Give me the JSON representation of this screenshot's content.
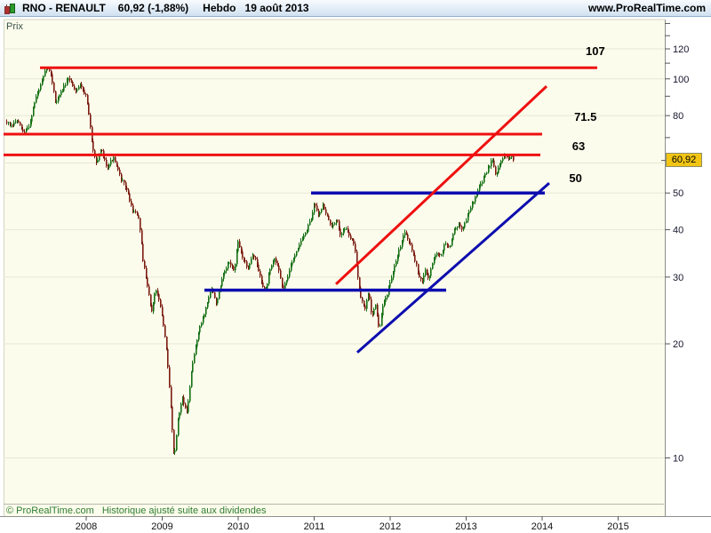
{
  "title_bar": {
    "symbol": "RNO - RENAULT",
    "price": "60,92 (-1,88%)",
    "timeframe": "Hebdo",
    "date": "19 août 2013",
    "site": "www.ProRealTime.com"
  },
  "chart": {
    "ylabel": "Prix",
    "copyright": "© ProRealTime.com",
    "footnote": "Historique ajusté suite aux dividendes",
    "last_price_badge": "60,92",
    "colors": {
      "plot_bg": "#fcfcec",
      "grid": "#e7e7d5",
      "axis": "#8f8f8f",
      "tick": "#555555",
      "candle_up": "#157015",
      "candle_down": "#7b1c10",
      "line_red": "#ee1010",
      "line_blue": "#0d0daf",
      "badge_bg": "#f2c513",
      "copyright_green": "#2f7d32",
      "label_text": "#000000",
      "axis_text": "#15152c"
    }
  },
  "chart_data": {
    "type": "candlestick",
    "title": "RNO - RENAULT weekly (Hebdo) price chart, log scale",
    "last_close": 60.92,
    "change_pct": -1.88,
    "as_of": "19 août 2013",
    "x_axis_years": [
      2008,
      2009,
      2010,
      2011,
      2012,
      2013,
      2014,
      2015
    ],
    "y_ticks_labeled": [
      120,
      100,
      80,
      50,
      40,
      30,
      20,
      10
    ],
    "y_ticks_minor": [
      140,
      130,
      110,
      90,
      70
    ],
    "y_gridlines": [
      120,
      100,
      80,
      60,
      50,
      40,
      30,
      20,
      10
    ],
    "y_scale": "log",
    "x_range_years": [
      2006.9,
      2015.6
    ],
    "price_path": [
      [
        2006.95,
        77
      ],
      [
        2007.01,
        74.5
      ],
      [
        2007.08,
        78
      ],
      [
        2007.17,
        71.8
      ],
      [
        2007.25,
        76
      ],
      [
        2007.33,
        89
      ],
      [
        2007.42,
        99
      ],
      [
        2007.47,
        107.5
      ],
      [
        2007.53,
        103
      ],
      [
        2007.59,
        86
      ],
      [
        2007.66,
        92
      ],
      [
        2007.77,
        100.5
      ],
      [
        2007.85,
        93
      ],
      [
        2007.92,
        97
      ],
      [
        2008.0,
        89
      ],
      [
        2008.07,
        67
      ],
      [
        2008.13,
        60
      ],
      [
        2008.19,
        65
      ],
      [
        2008.27,
        58.5
      ],
      [
        2008.35,
        62
      ],
      [
        2008.44,
        55
      ],
      [
        2008.53,
        51
      ],
      [
        2008.6,
        45
      ],
      [
        2008.68,
        43.5
      ],
      [
        2008.74,
        33
      ],
      [
        2008.8,
        28.5
      ],
      [
        2008.85,
        24
      ],
      [
        2008.91,
        28
      ],
      [
        2008.97,
        25
      ],
      [
        2009.03,
        21
      ],
      [
        2009.09,
        15
      ],
      [
        2009.15,
        9.8
      ],
      [
        2009.2,
        12.5
      ],
      [
        2009.26,
        14.5
      ],
      [
        2009.32,
        13
      ],
      [
        2009.38,
        17
      ],
      [
        2009.46,
        21
      ],
      [
        2009.56,
        24.5
      ],
      [
        2009.64,
        28
      ],
      [
        2009.71,
        25.5
      ],
      [
        2009.79,
        30
      ],
      [
        2009.88,
        33
      ],
      [
        2009.94,
        31
      ],
      [
        2009.99,
        37
      ],
      [
        2010.05,
        34
      ],
      [
        2010.12,
        31.5
      ],
      [
        2010.18,
        34.5
      ],
      [
        2010.23,
        33
      ],
      [
        2010.29,
        29.5
      ],
      [
        2010.35,
        27.4
      ],
      [
        2010.41,
        31
      ],
      [
        2010.47,
        33.5
      ],
      [
        2010.53,
        31.5
      ],
      [
        2010.58,
        27.6
      ],
      [
        2010.64,
        30
      ],
      [
        2010.73,
        34
      ],
      [
        2010.81,
        37
      ],
      [
        2010.89,
        39.5
      ],
      [
        2010.96,
        43
      ],
      [
        2011.0,
        47.5
      ],
      [
        2011.05,
        44
      ],
      [
        2011.11,
        46.5
      ],
      [
        2011.17,
        43
      ],
      [
        2011.23,
        40.5
      ],
      [
        2011.29,
        42.5
      ],
      [
        2011.34,
        39
      ],
      [
        2011.4,
        40.5
      ],
      [
        2011.46,
        38.5
      ],
      [
        2011.52,
        36.5
      ],
      [
        2011.57,
        30
      ],
      [
        2011.61,
        26.5
      ],
      [
        2011.66,
        24.5
      ],
      [
        2011.71,
        27.5
      ],
      [
        2011.75,
        23.5
      ],
      [
        2011.8,
        25.5
      ],
      [
        2011.85,
        21.5
      ],
      [
        2011.89,
        24.8
      ],
      [
        2011.95,
        27
      ],
      [
        2012.01,
        29.5
      ],
      [
        2012.07,
        33
      ],
      [
        2012.13,
        36.5
      ],
      [
        2012.19,
        39.8
      ],
      [
        2012.25,
        37
      ],
      [
        2012.3,
        34.5
      ],
      [
        2012.36,
        31
      ],
      [
        2012.41,
        28.8
      ],
      [
        2012.46,
        31.5
      ],
      [
        2012.5,
        29.5
      ],
      [
        2012.55,
        32.5
      ],
      [
        2012.6,
        35
      ],
      [
        2012.66,
        33.8
      ],
      [
        2012.71,
        37
      ],
      [
        2012.77,
        36
      ],
      [
        2012.83,
        39.5
      ],
      [
        2012.89,
        41.5
      ],
      [
        2012.95,
        40
      ],
      [
        2013.01,
        43.5
      ],
      [
        2013.06,
        46.5
      ],
      [
        2013.12,
        49
      ],
      [
        2013.18,
        52.5
      ],
      [
        2013.24,
        55.5
      ],
      [
        2013.3,
        59
      ],
      [
        2013.33,
        62.5
      ],
      [
        2013.38,
        56
      ],
      [
        2013.43,
        58.5
      ],
      [
        2013.47,
        61.5
      ],
      [
        2013.52,
        63.5
      ],
      [
        2013.55,
        61.5
      ],
      [
        2013.59,
        62.5
      ],
      [
        2013.61,
        60.92
      ]
    ],
    "trendlines": [
      {
        "kind": "horizontal",
        "price": 107,
        "t1": 2007.392,
        "t2": 2014.725,
        "color": "red",
        "width": 3
      },
      {
        "kind": "horizontal",
        "price": 71.5,
        "t1": 2006.912,
        "t2": 2014.0,
        "color": "red",
        "width": 3
      },
      {
        "kind": "horizontal",
        "price": 63,
        "t1": 2006.912,
        "t2": 2013.977,
        "color": "red",
        "width": 3
      },
      {
        "kind": "horizontal",
        "price": 50,
        "t1": 2010.959,
        "t2": 2014.035,
        "color": "blue",
        "width": 3.5
      },
      {
        "kind": "horizontal",
        "price": 27.7,
        "t1": 2009.556,
        "t2": 2012.737,
        "color": "blue",
        "width": 3.5
      },
      {
        "kind": "segment",
        "t1": 2011.287,
        "p1": 28.74,
        "t2": 2014.058,
        "p2": 95.6,
        "color": "red",
        "width": 3
      },
      {
        "kind": "segment",
        "t1": 2011.567,
        "p1": 18.98,
        "t2": 2014.093,
        "p2": 53.1,
        "color": "blue",
        "width": 3
      }
    ],
    "annotations": [
      {
        "text": "107",
        "t": 2014.7,
        "p": 118
      },
      {
        "text": "71.5",
        "t": 2014.57,
        "p": 79.3
      },
      {
        "text": "63",
        "t": 2014.48,
        "p": 66.3
      },
      {
        "text": "50",
        "t": 2014.44,
        "p": 54.6
      }
    ]
  }
}
